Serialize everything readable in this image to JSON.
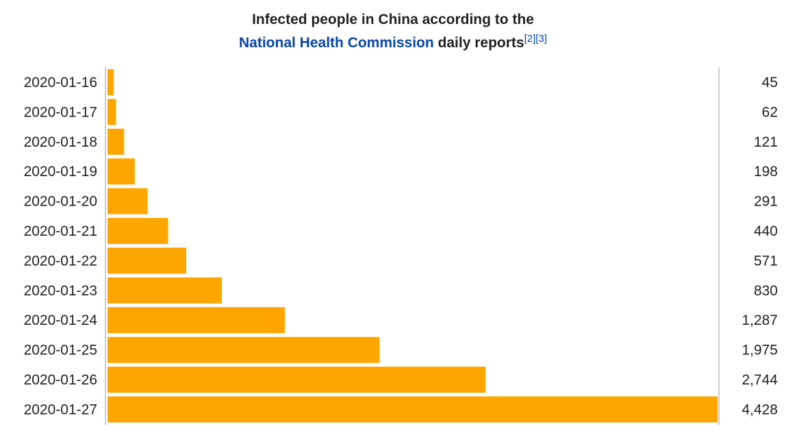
{
  "header": {
    "title_line1": "Infected people in China according to the",
    "title_link": "National Health Commission",
    "title_rest": " daily reports",
    "ref1": "[2]",
    "ref2": "[3]"
  },
  "colors": {
    "bar": "#ffa500",
    "axis": "#c8ccd1",
    "link": "#0645ad"
  },
  "chart_data": {
    "type": "bar",
    "orientation": "horizontal",
    "categories": [
      "2020-01-16",
      "2020-01-17",
      "2020-01-18",
      "2020-01-19",
      "2020-01-20",
      "2020-01-21",
      "2020-01-22",
      "2020-01-23",
      "2020-01-24",
      "2020-01-25",
      "2020-01-26",
      "2020-01-27"
    ],
    "values": [
      45,
      62,
      121,
      198,
      291,
      440,
      571,
      830,
      1287,
      1975,
      2744,
      4428
    ],
    "value_labels": [
      "45",
      "62",
      "121",
      "198",
      "291",
      "440",
      "571",
      "830",
      "1,287",
      "1,975",
      "2,744",
      "4,428"
    ],
    "xlim": [
      0,
      4428
    ],
    "title": "Infected people in China according to the National Health Commission daily reports",
    "xlabel": "",
    "ylabel": "",
    "grid": false
  }
}
